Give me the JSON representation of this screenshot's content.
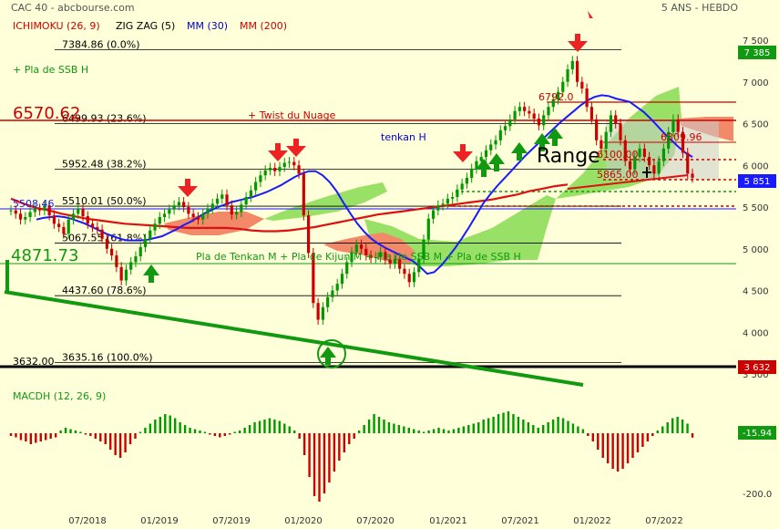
{
  "header": {
    "title": "CAC 40 - abcbourse.com",
    "period": "5 ANS - HEBDO",
    "indicators": [
      {
        "label": "ICHIMOKU (26, 9)",
        "color": "#cc0000"
      },
      {
        "label": "ZIG ZAG (5)",
        "color": "#000000"
      },
      {
        "label": "MM (30)",
        "color": "#0000cc"
      },
      {
        "label": "MM (200)",
        "color": "#cc0000"
      }
    ]
  },
  "colors": {
    "background": "#ffffd9",
    "price_up": "#009900",
    "price_down": "#cc0000",
    "mm30": "#1a1aff",
    "mm200": "#dd1111",
    "cloud_bull": "#99e066",
    "cloud_bear": "#f28a6a",
    "trendline": "#119911",
    "fibo": "#000000"
  },
  "chart_data": [
    {
      "type": "line",
      "name": "price",
      "x_ticks": [
        "07/2018",
        "01/2019",
        "07/2019",
        "01/2020",
        "07/2020",
        "01/2021",
        "07/2021",
        "01/2022",
        "07/2022"
      ],
      "y_ticks": [
        "7 500",
        "7 000",
        "6 500",
        "6 000",
        "5 500",
        "5 000",
        "4 500",
        "4 000",
        "3 500"
      ],
      "ylim": [
        3380,
        7620
      ],
      "last_price": "5 851",
      "top_marker": "7 385",
      "bottom_marker": "3 632",
      "fibo_levels": [
        {
          "value": 7384.86,
          "label": "7384.86  (0.0%)"
        },
        {
          "value": 6499.93,
          "label": "6499.93  (23.6%)"
        },
        {
          "value": 5952.48,
          "label": "5952.48  (38.2%)"
        },
        {
          "value": 5510.01,
          "label": "5510.01  (50.0%)"
        },
        {
          "value": 5067.55,
          "label": "5067.55  (61.8%)"
        },
        {
          "value": 4437.6,
          "label": "4437.60  (78.6%)"
        },
        {
          "value": 3635.16,
          "label": "3635.16  (100.0%)"
        }
      ],
      "annotations": {
        "level_6570": "6570.62",
        "level_5508": "5508.46",
        "level_4871": "4871.73",
        "level_3632": "3632.00",
        "twist": "+ Twist du Nuage",
        "ssb_left": "+ Pla de SSB H",
        "tenkan": "tenkan H",
        "pla_mid": "Pla de Tenkan M + Pla de Kijun M + Pla de SSB M + Pla de SSB H",
        "range": "Range",
        "r6792": "6792.0",
        "r6100": "6100.00",
        "r6309": "6309.96",
        "r5865": "5865.00"
      },
      "price_closes": [
        5460,
        5420,
        5350,
        5380,
        5440,
        5480,
        5460,
        5520,
        5400,
        5300,
        5260,
        5180,
        5350,
        5420,
        5480,
        5390,
        5300,
        5260,
        5230,
        5120,
        5000,
        4920,
        4780,
        4620,
        4750,
        4840,
        4910,
        5020,
        5120,
        5220,
        5300,
        5380,
        5420,
        5470,
        5520,
        5560,
        5500,
        5420,
        5380,
        5350,
        5420,
        5480,
        5540,
        5600,
        5650,
        5520,
        5410,
        5440,
        5530,
        5620,
        5700,
        5800,
        5880,
        5940,
        5970,
        5930,
        5980,
        6030,
        6040,
        6000,
        5900,
        5400,
        4950,
        4350,
        4150,
        4300,
        4420,
        4500,
        4580,
        4700,
        4840,
        4960,
        5050,
        5000,
        4920,
        4890,
        4900,
        4960,
        4870,
        4820,
        4880,
        4760,
        4700,
        4600,
        4720,
        4880,
        5110,
        5360,
        5460,
        5520,
        5540,
        5600,
        5620,
        5710,
        5780,
        5850,
        5960,
        6050,
        6100,
        6180,
        6250,
        6300,
        6420,
        6470,
        6550,
        6650,
        6700,
        6650,
        6620,
        6560,
        6480,
        6600,
        6700,
        6790,
        6880,
        7000,
        7150,
        7250,
        7000,
        6920,
        6700,
        6550,
        6300,
        6200,
        6400,
        6600,
        6500,
        6300,
        6050,
        5950,
        6100,
        6200,
        6100,
        6000,
        5900,
        6050,
        6200,
        6400,
        6550,
        6400,
        6150,
        5900,
        5851
      ],
      "mm30": [
        5350,
        5370,
        5380,
        5390,
        5380,
        5360,
        5330,
        5300,
        5260,
        5220,
        5180,
        5150,
        5120,
        5100,
        5100,
        5100,
        5110,
        5130,
        5150,
        5190,
        5230,
        5280,
        5320,
        5370,
        5420,
        5460,
        5500,
        5530,
        5560,
        5580,
        5600,
        5620,
        5650,
        5680,
        5720,
        5760,
        5810,
        5860,
        5900,
        5930,
        5930,
        5880,
        5800,
        5690,
        5550,
        5420,
        5300,
        5200,
        5120,
        5060,
        5010,
        4970,
        4930,
        4890,
        4850,
        4780,
        4700,
        4720,
        4800,
        4900,
        5010,
        5130,
        5260,
        5400,
        5540,
        5650,
        5750,
        5840,
        5930,
        6020,
        6110,
        6190,
        6270,
        6350,
        6430,
        6510,
        6580,
        6650,
        6720,
        6780,
        6820,
        6840,
        6830,
        6800,
        6780,
        6760,
        6700,
        6640,
        6560,
        6470,
        6380,
        6300,
        6220,
        6150,
        6100
      ],
      "mm200": [
        5600,
        5540,
        5490,
        5460,
        5420,
        5390,
        5360,
        5340,
        5320,
        5300,
        5290,
        5280,
        5270,
        5260,
        5250,
        5250,
        5250,
        5250,
        5240,
        5220,
        5210,
        5210,
        5220,
        5240,
        5260,
        5290,
        5320,
        5350,
        5380,
        5410,
        5430,
        5450,
        5470,
        5490,
        5510,
        5530,
        5550,
        5570,
        5590,
        5620,
        5650,
        5690,
        5720,
        5750,
        5770
      ],
      "macd_label": "MACDH (12, 26, 9)",
      "macd_last": "-15.94",
      "macd_ticks": [
        "0",
        "-200.0"
      ],
      "macd_ylim": [
        -260,
        120
      ],
      "macd_values": [
        -10,
        -15,
        -25,
        -30,
        -40,
        -35,
        -30,
        -25,
        -20,
        -15,
        10,
        20,
        15,
        10,
        5,
        -5,
        -10,
        -20,
        -30,
        -40,
        -60,
        -80,
        -90,
        -70,
        -40,
        -20,
        5,
        20,
        35,
        50,
        60,
        70,
        65,
        55,
        40,
        30,
        20,
        15,
        10,
        5,
        -5,
        -10,
        -15,
        -10,
        -5,
        5,
        10,
        20,
        30,
        40,
        45,
        50,
        55,
        50,
        45,
        35,
        25,
        10,
        -20,
        -80,
        -160,
        -230,
        -250,
        -220,
        -180,
        -140,
        -100,
        -70,
        -40,
        -20,
        10,
        30,
        50,
        70,
        60,
        50,
        40,
        35,
        30,
        25,
        20,
        15,
        10,
        5,
        10,
        15,
        20,
        15,
        10,
        15,
        20,
        25,
        30,
        35,
        40,
        50,
        55,
        60,
        70,
        75,
        80,
        70,
        60,
        50,
        40,
        30,
        20,
        30,
        40,
        50,
        60,
        55,
        45,
        35,
        25,
        15,
        -10,
        -30,
        -60,
        -90,
        -110,
        -130,
        -140,
        -130,
        -110,
        -90,
        -70,
        -50,
        -30,
        -10,
        10,
        25,
        40,
        55,
        60,
        50,
        35,
        -15.94
      ]
    }
  ]
}
